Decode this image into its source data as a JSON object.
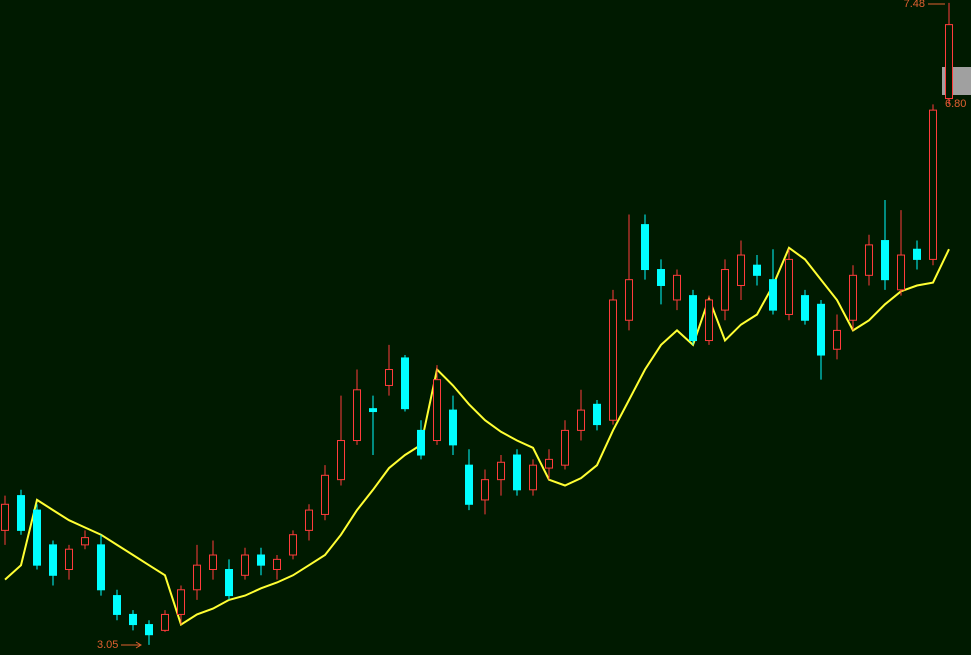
{
  "chart_data": {
    "type": "candlestick",
    "open": [
      3.84,
      4.08,
      3.98,
      3.74,
      3.57,
      3.74,
      3.74,
      3.39,
      3.26,
      3.19,
      3.15,
      3.26,
      3.43,
      3.57,
      3.57,
      3.53,
      3.67,
      3.57,
      3.67,
      3.84,
      3.95,
      4.19,
      4.46,
      4.68,
      4.84,
      5.03,
      4.53,
      4.46,
      4.67,
      4.29,
      4.05,
      4.19,
      4.36,
      4.12,
      4.27,
      4.29,
      4.53,
      4.71,
      4.6,
      5.29,
      5.95,
      5.64,
      5.43,
      5.46,
      5.15,
      5.36,
      5.53,
      5.67,
      5.57,
      5.33,
      5.46,
      5.4,
      5.09,
      5.29,
      5.6,
      5.84,
      5.5,
      5.78,
      5.71,
      6.82
    ],
    "high": [
      4.08,
      4.12,
      4.02,
      3.77,
      3.74,
      3.84,
      3.81,
      3.43,
      3.29,
      3.22,
      3.29,
      3.46,
      3.74,
      3.77,
      3.64,
      3.72,
      3.72,
      3.67,
      3.84,
      4.02,
      4.29,
      4.77,
      4.95,
      4.77,
      5.12,
      5.05,
      4.6,
      4.98,
      4.77,
      4.4,
      4.26,
      4.36,
      4.4,
      4.33,
      4.4,
      4.6,
      4.81,
      4.74,
      5.5,
      6.02,
      6.02,
      5.71,
      5.64,
      5.5,
      5.46,
      5.71,
      5.84,
      5.74,
      5.78,
      5.78,
      5.5,
      5.43,
      5.33,
      5.67,
      5.88,
      6.12,
      6.05,
      5.84,
      6.78,
      7.48
    ],
    "low": [
      3.74,
      3.81,
      3.57,
      3.46,
      3.5,
      3.71,
      3.39,
      3.22,
      3.15,
      3.05,
      3.14,
      3.19,
      3.36,
      3.5,
      3.36,
      3.5,
      3.53,
      3.5,
      3.64,
      3.77,
      3.91,
      4.15,
      4.43,
      4.36,
      4.77,
      4.66,
      4.33,
      4.43,
      4.36,
      3.98,
      3.95,
      4.08,
      4.08,
      4.08,
      4.19,
      4.26,
      4.46,
      4.53,
      4.57,
      5.22,
      5.57,
      5.4,
      5.36,
      5.12,
      5.12,
      5.29,
      5.43,
      5.53,
      5.33,
      5.29,
      5.26,
      4.88,
      5.02,
      5.22,
      5.53,
      5.5,
      5.46,
      5.64,
      5.67,
      6.78
    ],
    "close": [
      4.02,
      3.84,
      3.6,
      3.53,
      3.71,
      3.79,
      3.43,
      3.26,
      3.19,
      3.12,
      3.26,
      3.43,
      3.6,
      3.67,
      3.39,
      3.67,
      3.6,
      3.64,
      3.81,
      3.98,
      4.22,
      4.46,
      4.81,
      4.66,
      4.95,
      4.68,
      4.36,
      4.88,
      4.43,
      4.02,
      4.19,
      4.31,
      4.12,
      4.29,
      4.33,
      4.53,
      4.67,
      4.57,
      5.43,
      5.57,
      5.64,
      5.53,
      5.6,
      5.15,
      5.43,
      5.64,
      5.74,
      5.6,
      5.36,
      5.71,
      5.29,
      5.05,
      5.22,
      5.6,
      5.81,
      5.57,
      5.74,
      5.71,
      6.74,
      7.33
    ],
    "trail": [
      3.5,
      3.6,
      4.05,
      3.98,
      3.91,
      3.86,
      3.81,
      3.74,
      3.67,
      3.6,
      3.53,
      3.19,
      3.26,
      3.3,
      3.36,
      3.39,
      3.44,
      3.48,
      3.53,
      3.6,
      3.67,
      3.81,
      3.98,
      4.12,
      4.27,
      4.36,
      4.43,
      4.95,
      4.84,
      4.71,
      4.6,
      4.52,
      4.46,
      4.41,
      4.19,
      4.15,
      4.2,
      4.29,
      4.53,
      4.74,
      4.95,
      5.12,
      5.22,
      5.12,
      5.44,
      5.15,
      5.26,
      5.33,
      5.53,
      5.79,
      5.71,
      5.57,
      5.43,
      5.22,
      5.29,
      5.4,
      5.49,
      5.53,
      5.55,
      5.78
    ],
    "ylim": [
      2.98,
      7.5
    ],
    "up_color": "#ff3c3c",
    "down_color": "#00ffff",
    "trail_color": "#ffff33",
    "annotations": [
      "7.48",
      "6.80",
      "3.05"
    ]
  }
}
